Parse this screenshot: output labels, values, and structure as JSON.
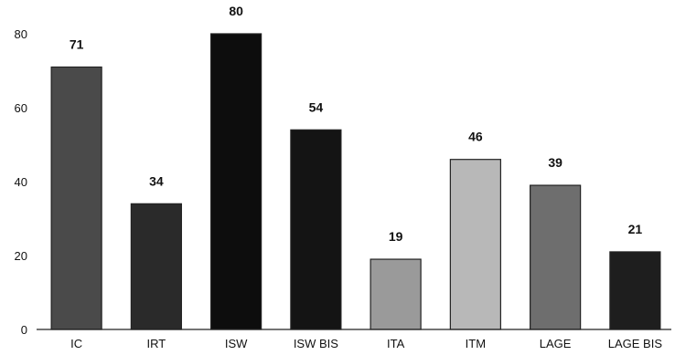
{
  "chart_data": {
    "type": "bar",
    "categories": [
      "IC",
      "IRT",
      "ISW",
      "ISW BIS",
      "ITA",
      "ITM",
      "LAGE",
      "LAGE BIS"
    ],
    "values": [
      71,
      34,
      80,
      54,
      19,
      46,
      39,
      21
    ],
    "bar_colors": [
      "#4a4a4a",
      "#2a2a2a",
      "#0d0d0d",
      "#141414",
      "#9a9a9a",
      "#b8b8b8",
      "#6e6e6e",
      "#1e1e1e"
    ],
    "y_ticks": [
      0,
      20,
      40,
      60,
      80
    ],
    "ylim": [
      0,
      80
    ],
    "grid": false,
    "legend": "none"
  }
}
